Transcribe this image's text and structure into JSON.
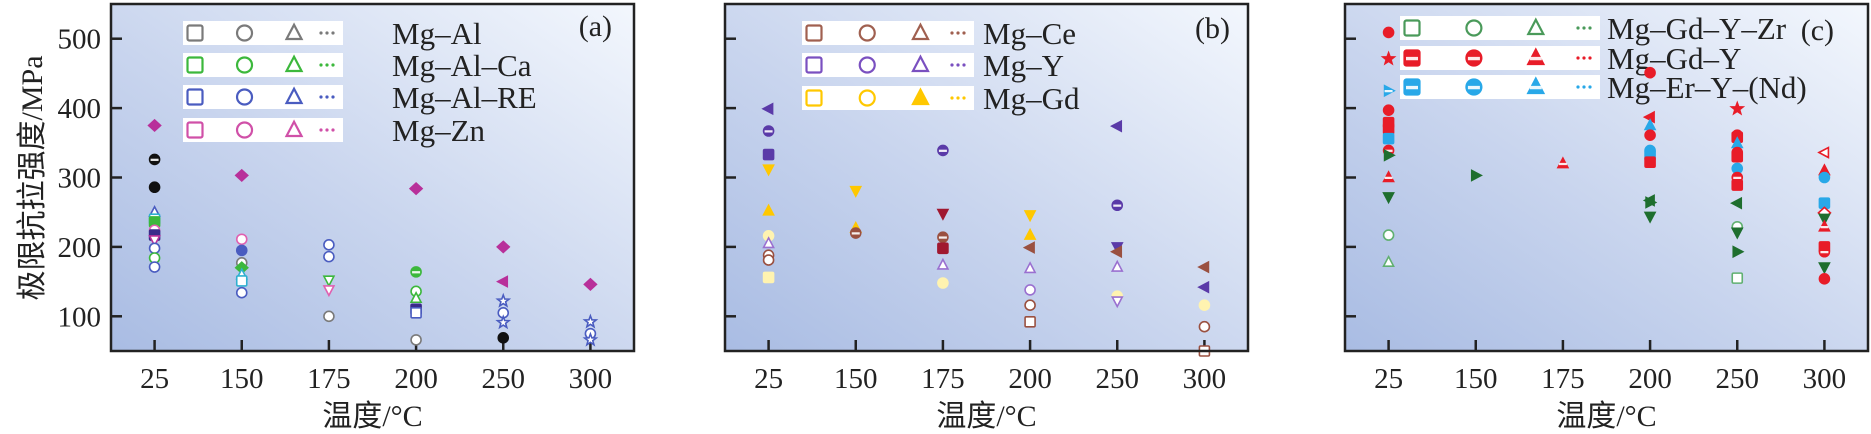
{
  "chart_data": [
    {
      "type": "scatter",
      "panel_tag": "(a)",
      "xlabel": "温度/°C",
      "ylabel": "极限抗拉强度/MPa",
      "categories": [
        "25",
        "150",
        "175",
        "200",
        "250",
        "300"
      ],
      "yticks": [
        100,
        200,
        300,
        400,
        500
      ],
      "ylim": [
        50,
        550
      ],
      "show_ytick_labels": true,
      "legend": [
        {
          "name": "Mg–Al",
          "color": "#7a7a7a",
          "fill": "open"
        },
        {
          "name": "Mg–Al–Ca",
          "color": "#3cb83c",
          "fill": "open"
        },
        {
          "name": "Mg–Al–RE",
          "color": "#4a5cc0",
          "fill": "open"
        },
        {
          "name": "Mg–Zn",
          "color": "#d050a8",
          "fill": "open"
        }
      ],
      "points": [
        [
          0,
          375,
          "#b8309a",
          "diamond",
          "filled"
        ],
        [
          0,
          326,
          "#111111",
          "circle",
          "half"
        ],
        [
          0,
          286,
          "#111111",
          "circle",
          "filled"
        ],
        [
          0,
          250,
          "#4a5cc0",
          "tri-up",
          "open"
        ],
        [
          0,
          240,
          "#30b0d0",
          "square",
          "open"
        ],
        [
          0,
          236,
          "#3cb83c",
          "square",
          "filled"
        ],
        [
          0,
          224,
          "#e060b0",
          "circle",
          "open"
        ],
        [
          0,
          217,
          "#3a2a8a",
          "square",
          "filled"
        ],
        [
          0,
          210,
          "#b8309a",
          "tri-down",
          "open"
        ],
        [
          0,
          198,
          "#4a5cc0",
          "circle",
          "open"
        ],
        [
          0,
          184,
          "#3cb83c",
          "circle",
          "open"
        ],
        [
          0,
          171,
          "#4a5cc0",
          "circle",
          "open"
        ],
        [
          1,
          303,
          "#b8309a",
          "diamond",
          "filled"
        ],
        [
          1,
          211,
          "#e060b0",
          "circle",
          "open"
        ],
        [
          1,
          195,
          "#4a5cc0",
          "circle",
          "filled"
        ],
        [
          1,
          177,
          "#7a7a7a",
          "circle",
          "open"
        ],
        [
          1,
          170,
          "#3cb83c",
          "diamond",
          "filled"
        ],
        [
          1,
          160,
          "#30b0d0",
          "tri-up",
          "open"
        ],
        [
          1,
          151,
          "#30b0d0",
          "square",
          "open"
        ],
        [
          1,
          134,
          "#4a5cc0",
          "circle",
          "open"
        ],
        [
          2,
          203,
          "#4a5cc0",
          "circle",
          "open"
        ],
        [
          2,
          186,
          "#4a5cc0",
          "circle",
          "open"
        ],
        [
          2,
          152,
          "#3cb83c",
          "tri-down",
          "open"
        ],
        [
          2,
          138,
          "#e060b0",
          "tri-down",
          "open"
        ],
        [
          2,
          100,
          "#7a7a7a",
          "circle",
          "open"
        ],
        [
          3,
          284,
          "#b8309a",
          "diamond",
          "filled"
        ],
        [
          3,
          164,
          "#3cb83c",
          "circle",
          "half"
        ],
        [
          3,
          136,
          "#3cb83c",
          "circle",
          "open"
        ],
        [
          3,
          126,
          "#3cb83c",
          "tri-up",
          "open"
        ],
        [
          3,
          110,
          "#3a2a8a",
          "square",
          "filled"
        ],
        [
          3,
          105,
          "#4a5cc0",
          "square",
          "open"
        ],
        [
          3,
          66,
          "#7a7a7a",
          "circle",
          "open"
        ],
        [
          4,
          200,
          "#b8309a",
          "diamond",
          "filled"
        ],
        [
          4,
          150,
          "#b8309a",
          "tri-left",
          "filled"
        ],
        [
          4,
          122,
          "#4a5cc0",
          "star",
          "open"
        ],
        [
          4,
          105,
          "#4a5cc0",
          "circle",
          "open"
        ],
        [
          4,
          91,
          "#4a5cc0",
          "star",
          "open"
        ],
        [
          4,
          69,
          "#111111",
          "circle",
          "filled"
        ],
        [
          5,
          146,
          "#b8309a",
          "diamond",
          "filled"
        ],
        [
          5,
          92,
          "#4a5cc0",
          "star",
          "open"
        ],
        [
          5,
          75,
          "#4a5cc0",
          "circle",
          "open"
        ],
        [
          5,
          66,
          "#4a5cc0",
          "star",
          "open"
        ]
      ]
    },
    {
      "type": "scatter",
      "panel_tag": "(b)",
      "xlabel": "温度/°C",
      "categories": [
        "25",
        "150",
        "175",
        "200",
        "250",
        "300"
      ],
      "yticks": [
        100,
        200,
        300,
        400,
        500
      ],
      "ylim": [
        50,
        550
      ],
      "show_ytick_labels": false,
      "legend": [
        {
          "name": "Mg–Ce",
          "color": "#a06050",
          "fill": "open"
        },
        {
          "name": "Mg–Y",
          "color": "#7a50c0",
          "fill": "open"
        },
        {
          "name": "Mg–Gd",
          "color": "#ffc800",
          "fill": "open-filledtri"
        }
      ],
      "points": [
        [
          0,
          399,
          "#5a3aa8",
          "tri-left",
          "filled"
        ],
        [
          0,
          367,
          "#5a3aa8",
          "circle",
          "half"
        ],
        [
          0,
          333,
          "#5a3aa8",
          "square",
          "filled"
        ],
        [
          0,
          312,
          "#ffc800",
          "tri-down",
          "filled"
        ],
        [
          0,
          252,
          "#ffc800",
          "tri-up",
          "filled"
        ],
        [
          0,
          216,
          "#fff3b0",
          "circle",
          "filled"
        ],
        [
          0,
          205,
          "#9a70d0",
          "tri-up",
          "open"
        ],
        [
          0,
          188,
          "#9a5040",
          "circle",
          "open"
        ],
        [
          0,
          181,
          "#9a5040",
          "circle",
          "open"
        ],
        [
          0,
          156,
          "#fff3b0",
          "square",
          "filled"
        ],
        [
          1,
          281,
          "#ffc800",
          "tri-down",
          "filled"
        ],
        [
          1,
          227,
          "#ffc800",
          "tri-up",
          "filled"
        ],
        [
          1,
          220,
          "#9a5040",
          "circle",
          "half"
        ],
        [
          2,
          339,
          "#5a3aa8",
          "circle",
          "half"
        ],
        [
          2,
          248,
          "#a01830",
          "tri-down",
          "filled"
        ],
        [
          2,
          214,
          "#9a5040",
          "circle",
          "half"
        ],
        [
          2,
          198,
          "#a01830",
          "square",
          "filled"
        ],
        [
          2,
          174,
          "#9a70d0",
          "tri-up",
          "open"
        ],
        [
          2,
          148,
          "#fff3b0",
          "circle",
          "filled"
        ],
        [
          3,
          246,
          "#ffc800",
          "tri-down",
          "filled"
        ],
        [
          3,
          217,
          "#ffc800",
          "tri-up",
          "filled"
        ],
        [
          3,
          199,
          "#9a5040",
          "tri-left",
          "filled"
        ],
        [
          3,
          169,
          "#9a70d0",
          "tri-up",
          "open"
        ],
        [
          3,
          138,
          "#9a70d0",
          "circle",
          "open"
        ],
        [
          3,
          116,
          "#9a5040",
          "circle",
          "open"
        ],
        [
          3,
          92,
          "#9a5040",
          "square",
          "open"
        ],
        [
          4,
          374,
          "#5a3aa8",
          "tri-left",
          "filled"
        ],
        [
          4,
          260,
          "#5a3aa8",
          "circle",
          "half"
        ],
        [
          4,
          200,
          "#5a3aa8",
          "tri-down",
          "filled"
        ],
        [
          4,
          193,
          "#9a5040",
          "tri-left",
          "filled"
        ],
        [
          4,
          171,
          "#9a70d0",
          "tri-up",
          "open"
        ],
        [
          4,
          129,
          "#fff3b0",
          "circle",
          "filled"
        ],
        [
          4,
          122,
          "#9a70d0",
          "tri-down",
          "open"
        ],
        [
          5,
          171,
          "#9a5040",
          "tri-left",
          "filled"
        ],
        [
          5,
          142,
          "#5a3aa8",
          "tri-left",
          "filled"
        ],
        [
          5,
          116,
          "#fff3b0",
          "circle",
          "filled"
        ],
        [
          5,
          85,
          "#9a5040",
          "circle",
          "open"
        ],
        [
          5,
          50,
          "#9a5040",
          "square",
          "open"
        ]
      ]
    },
    {
      "type": "scatter",
      "panel_tag": "(c)",
      "xlabel": "温度/°C",
      "categories": [
        "25",
        "150",
        "175",
        "200",
        "250",
        "300"
      ],
      "yticks": [
        100,
        200,
        300,
        400,
        500
      ],
      "ylim": [
        50,
        550
      ],
      "show_ytick_labels": false,
      "legend": [
        {
          "name": "Mg–Gd–Y–Zr",
          "color": "#4a9a5a",
          "fill": "open"
        },
        {
          "name": "Mg–Gd–Y",
          "color": "#e81c28",
          "fill": "half"
        },
        {
          "name": "Mg–Er–Y–(Nd)",
          "color": "#28a8e8",
          "fill": "half"
        }
      ],
      "points": [
        [
          0,
          509,
          "#e81c28",
          "circle",
          "filled"
        ],
        [
          0,
          471,
          "#e81c28",
          "star",
          "filled"
        ],
        [
          0,
          425,
          "#28a8e8",
          "tri-right",
          "half"
        ],
        [
          0,
          397,
          "#e81c28",
          "circle",
          "filled"
        ],
        [
          0,
          379,
          "#e81c28",
          "square",
          "filled"
        ],
        [
          0,
          370,
          "#e81c28",
          "square",
          "filled"
        ],
        [
          0,
          356,
          "#28a8e8",
          "square",
          "filled"
        ],
        [
          0,
          339,
          "#e81c28",
          "circle",
          "half"
        ],
        [
          0,
          332,
          "#1e6e2e",
          "tri-right",
          "filled"
        ],
        [
          0,
          300,
          "#e81c28",
          "tri-up",
          "half"
        ],
        [
          0,
          272,
          "#1e6e2e",
          "tri-down",
          "filled"
        ],
        [
          0,
          217,
          "#60b070",
          "circle",
          "open"
        ],
        [
          0,
          178,
          "#60b070",
          "tri-up",
          "open"
        ],
        [
          1,
          303,
          "#1e6e2e",
          "tri-right",
          "filled"
        ],
        [
          2,
          320,
          "#e81c28",
          "tri-up",
          "half"
        ],
        [
          3,
          451,
          "#e81c28",
          "circle",
          "filled"
        ],
        [
          3,
          387,
          "#e81c28",
          "tri-left",
          "filled"
        ],
        [
          3,
          375,
          "#28a8e8",
          "tri-up",
          "filled"
        ],
        [
          3,
          361,
          "#e81c28",
          "circle",
          "filled"
        ],
        [
          3,
          339,
          "#28a8e8",
          "circle",
          "half"
        ],
        [
          3,
          332,
          "#28a8e8",
          "square",
          "filled"
        ],
        [
          3,
          322,
          "#e81c28",
          "square",
          "filled"
        ],
        [
          3,
          267,
          "#1e6e2e",
          "tri-left",
          "filled"
        ],
        [
          3,
          264,
          "#1e6e2e",
          "tri-right",
          "filled"
        ],
        [
          3,
          244,
          "#1e6e2e",
          "tri-down",
          "filled"
        ],
        [
          4,
          399,
          "#e81c28",
          "star",
          "filled"
        ],
        [
          4,
          361,
          "#e81c28",
          "circle",
          "filled"
        ],
        [
          4,
          358,
          "#e81c28",
          "square",
          "filled"
        ],
        [
          4,
          349,
          "#28a8e8",
          "tri-up",
          "filled"
        ],
        [
          4,
          336,
          "#e81c28",
          "circle",
          "half"
        ],
        [
          4,
          330,
          "#e81c28",
          "square",
          "filled"
        ],
        [
          4,
          313,
          "#28a8e8",
          "circle",
          "filled"
        ],
        [
          4,
          300,
          "#e81c28",
          "circle",
          "half"
        ],
        [
          4,
          289,
          "#e81c28",
          "square",
          "filled"
        ],
        [
          4,
          263,
          "#1e6e2e",
          "tri-left",
          "filled"
        ],
        [
          4,
          229,
          "#60b070",
          "circle",
          "open"
        ],
        [
          4,
          221,
          "#1e6e2e",
          "tri-down",
          "filled"
        ],
        [
          4,
          193,
          "#1e6e2e",
          "tri-right",
          "filled"
        ],
        [
          4,
          155,
          "#60b070",
          "square",
          "open"
        ],
        [
          5,
          336,
          "#e81c28",
          "tri-left",
          "open"
        ],
        [
          5,
          310,
          "#e81c28",
          "tri-up",
          "filled"
        ],
        [
          5,
          300,
          "#28a8e8",
          "circle",
          "filled"
        ],
        [
          5,
          263,
          "#28a8e8",
          "square",
          "filled"
        ],
        [
          5,
          249,
          "#e81c28",
          "diamond",
          "open"
        ],
        [
          5,
          241,
          "#1e6e2e",
          "tri-down",
          "filled"
        ],
        [
          5,
          229,
          "#e81c28",
          "tri-up",
          "half"
        ],
        [
          5,
          200,
          "#e81c28",
          "square",
          "filled"
        ],
        [
          5,
          193,
          "#e81c28",
          "circle",
          "half"
        ],
        [
          5,
          171,
          "#1e6e2e",
          "tri-down",
          "filled"
        ],
        [
          5,
          154,
          "#e81c28",
          "circle",
          "filled"
        ]
      ]
    }
  ]
}
